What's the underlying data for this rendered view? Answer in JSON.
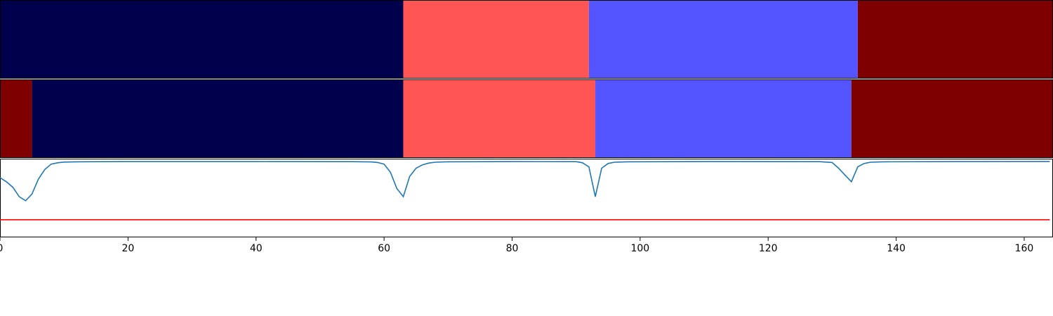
{
  "chart_data": [
    {
      "type": "heatmap",
      "title": "",
      "xlabel": "",
      "ylabel": "",
      "xlim": [
        0,
        164.5
      ],
      "segments": [
        {
          "start": 0,
          "end": 63,
          "color": "#00004c"
        },
        {
          "start": 63,
          "end": 92,
          "color": "#ff5555"
        },
        {
          "start": 92,
          "end": 134,
          "color": "#5555ff"
        },
        {
          "start": 134,
          "end": 164.5,
          "color": "#7f0000"
        }
      ]
    },
    {
      "type": "heatmap",
      "title": "",
      "xlabel": "",
      "ylabel": "",
      "xlim": [
        0,
        164.5
      ],
      "segments": [
        {
          "start": 0,
          "end": 5,
          "color": "#7f0000"
        },
        {
          "start": 5,
          "end": 63,
          "color": "#00004c"
        },
        {
          "start": 63,
          "end": 93,
          "color": "#ff5555"
        },
        {
          "start": 93,
          "end": 133,
          "color": "#5555ff"
        },
        {
          "start": 133,
          "end": 164.5,
          "color": "#7f0000"
        }
      ]
    },
    {
      "type": "line",
      "title": "",
      "xlabel": "",
      "ylabel": "",
      "xlim": [
        0,
        164.5
      ],
      "ylim": [
        -0.56,
        0.02
      ],
      "xticks": [
        0,
        20,
        40,
        60,
        80,
        100,
        120,
        140,
        160
      ],
      "series": [
        {
          "color": "#1f77b4",
          "points": [
            [
              0,
              -0.12
            ],
            [
              1,
              -0.15
            ],
            [
              2,
              -0.19
            ],
            [
              3,
              -0.26
            ],
            [
              4,
              -0.29
            ],
            [
              5,
              -0.24
            ],
            [
              6,
              -0.13
            ],
            [
              7,
              -0.06
            ],
            [
              8,
              -0.02
            ],
            [
              9,
              -0.01
            ],
            [
              10,
              -0.005
            ],
            [
              12,
              -0.003
            ],
            [
              20,
              -0.001
            ],
            [
              40,
              -0.001
            ],
            [
              55,
              -0.002
            ],
            [
              58,
              -0.004
            ],
            [
              59,
              -0.008
            ],
            [
              60,
              -0.02
            ],
            [
              61,
              -0.08
            ],
            [
              62,
              -0.2
            ],
            [
              63,
              -0.26
            ],
            [
              64,
              -0.11
            ],
            [
              65,
              -0.05
            ],
            [
              66,
              -0.025
            ],
            [
              67,
              -0.012
            ],
            [
              68,
              -0.006
            ],
            [
              70,
              -0.003
            ],
            [
              80,
              -0.001
            ],
            [
              90,
              -0.002
            ],
            [
              91,
              -0.01
            ],
            [
              92,
              -0.04
            ],
            [
              93,
              -0.26
            ],
            [
              94,
              -0.05
            ],
            [
              95,
              -0.015
            ],
            [
              96,
              -0.006
            ],
            [
              98,
              -0.003
            ],
            [
              110,
              -0.001
            ],
            [
              128,
              -0.002
            ],
            [
              130,
              -0.008
            ],
            [
              131,
              -0.05
            ],
            [
              132,
              -0.1
            ],
            [
              133,
              -0.15
            ],
            [
              134,
              -0.04
            ],
            [
              135,
              -0.015
            ],
            [
              136,
              -0.006
            ],
            [
              138,
              -0.003
            ],
            [
              150,
              -0.001
            ],
            [
              164,
              0
            ]
          ]
        },
        {
          "color": "#ff0000",
          "points": [
            [
              0,
              -0.43
            ],
            [
              164,
              -0.43
            ]
          ]
        }
      ]
    }
  ]
}
